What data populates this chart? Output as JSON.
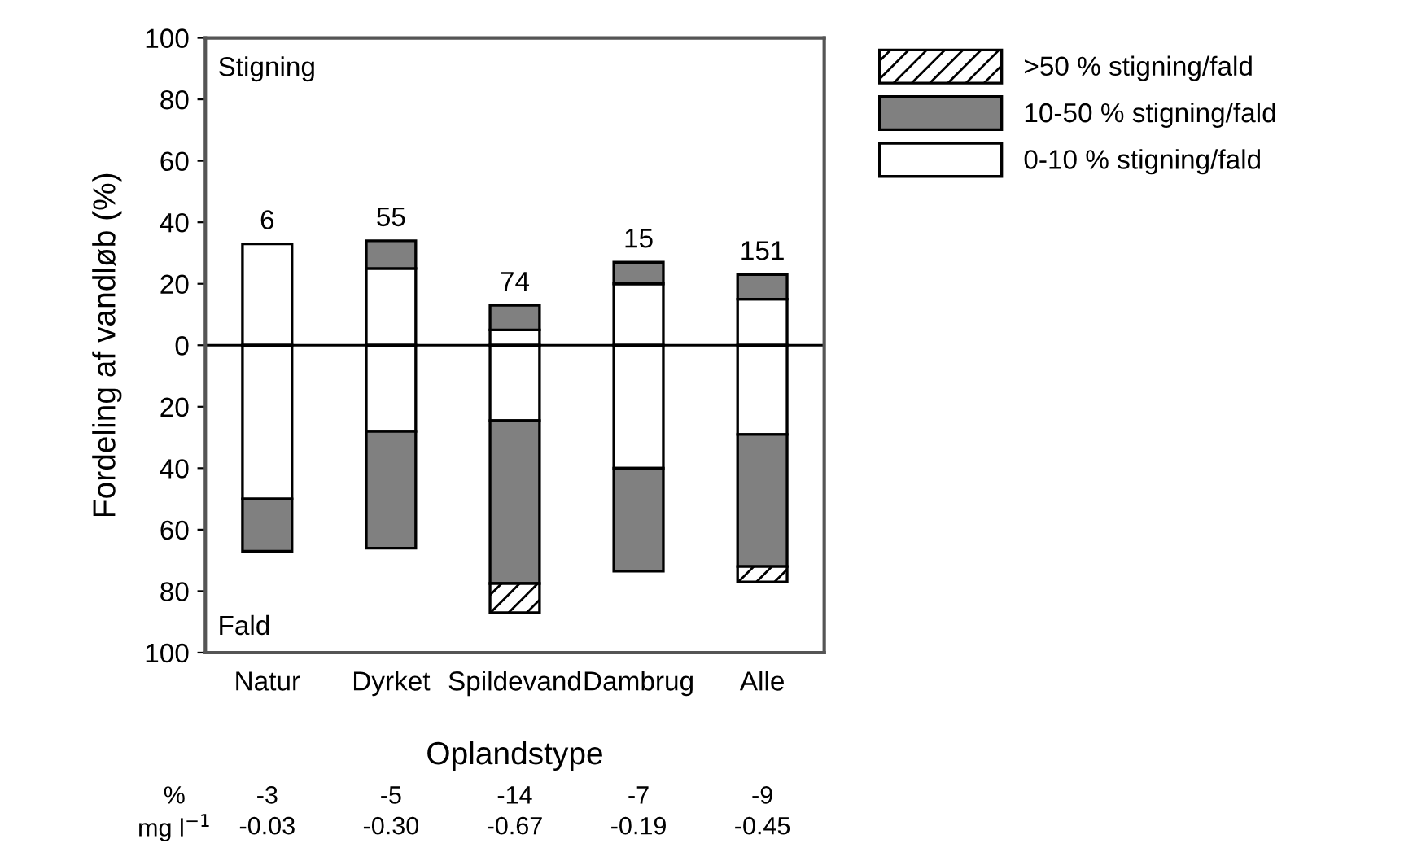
{
  "chart_data": {
    "type": "bar",
    "stacked": true,
    "ylabel": "Fordeling af vandløb (%)",
    "xlabel": "Oplandstype",
    "categories": [
      "Natur",
      "Dyrket",
      "Spildevand",
      "Dambrug",
      "Alle"
    ],
    "series": [
      {
        "name": "0-10 % stigning/fald",
        "color": "#ffffff",
        "values": [
          33,
          25,
          5,
          20,
          15
        ]
      },
      {
        "name": "10-50 % stigning/fald",
        "color": "#808080",
        "values": [
          null,
          9,
          8,
          7,
          8
        ]
      },
      {
        "name": ">50 % stigning/fald",
        "color": "#000000",
        "values": [
          null,
          null,
          null,
          null,
          null
        ]
      },
      {
        "color": "#ffffff",
        "values": [
          -50,
          -28,
          -24.5,
          -40,
          -29
        ]
      },
      {
        "color": "#808080",
        "values": [
          -17,
          -38,
          -53,
          -33.5,
          -43
        ]
      },
      {
        "color": "#000000",
        "values": [
          null,
          null,
          -9.5,
          null,
          -5
        ]
      }
    ],
    "ylim": [
      -100,
      100
    ],
    "yticks": [
      {
        "value": -100,
        "label": "100"
      },
      {
        "value": -80,
        "label": "80"
      },
      {
        "value": -60,
        "label": "60"
      },
      {
        "value": -40,
        "label": "40"
      },
      {
        "value": -20,
        "label": "20"
      },
      0,
      20,
      40,
      60,
      80,
      100
    ],
    "ref_lines": [
      {
        "axis": "y",
        "value": 0,
        "color": "#000000"
      }
    ],
    "legend": "top right",
    "grid": false,
    "annotations": [
      "Stigning",
      "Fald",
      "%",
      "-3",
      "-5",
      "-14",
      "-7",
      "-9",
      "mg l$^{−1}$",
      "-0.03",
      "-0.30",
      "-0.67",
      "-0.19",
      "-0.45",
      {
        "text": "6",
        "x": "Natur",
        "y": 33
      },
      {
        "text": "55",
        "x": "Dyrket",
        "y": 34
      },
      {
        "text": "74",
        "x": "Spildevand",
        "y": 13
      },
      {
        "text": "15",
        "x": "Dambrug",
        "y": 27
      },
      {
        "text": "151",
        "x": "Alle",
        "y": 23
      }
    ]
  }
}
